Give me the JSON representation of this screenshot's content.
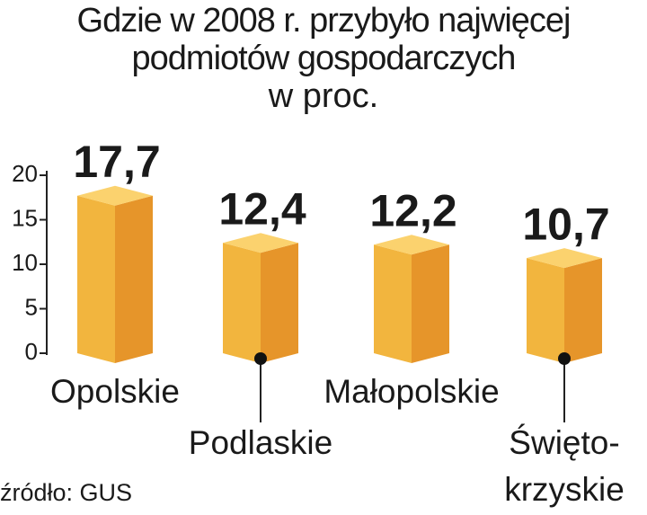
{
  "chart_data": {
    "type": "bar3d",
    "title": "Gdzie w 2008 r. przybyło najwięcej podmiotów gospodarczych",
    "subtitle": "w proc.",
    "categories": [
      "Opolskie",
      "Podlaskie",
      "Małopolskie",
      "Święto-krzyskie"
    ],
    "values": [
      17.7,
      12.4,
      12.2,
      10.7
    ],
    "value_labels": [
      "17,7",
      "12,4",
      "12,2",
      "10,7"
    ],
    "color": "#f2b53e",
    "ylim": [
      0,
      20
    ],
    "yticks": [
      0,
      5,
      10,
      15,
      20
    ],
    "grid": false,
    "source": "źródło: GUS"
  }
}
